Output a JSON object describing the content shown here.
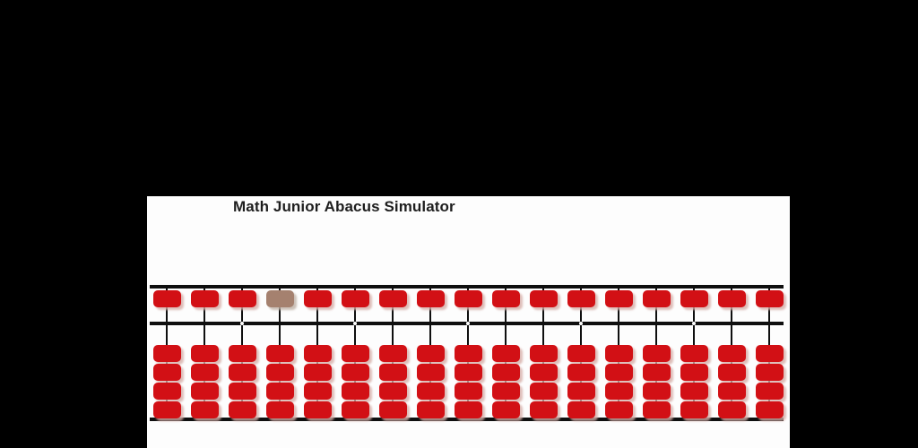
{
  "app": {
    "title": "Math Junior Abacus Simulator",
    "background_color": "#000000",
    "panel_color": "#fdfdfd",
    "title_color": "#1e1e1e"
  },
  "abacus": {
    "rod_count": 17,
    "heaven_beads_per_rod": 1,
    "earth_beads_per_rod": 4,
    "heaven_bead_position": "up",
    "earth_bead_position": "down",
    "displayed_value": "0",
    "unit_dot_rods": [
      3,
      6,
      9,
      12,
      15
    ],
    "highlighted_rod": 4,
    "highlighted_bead_row": "heaven",
    "bead_color": "#d21015",
    "highlighted_bead_color": "#a5816f",
    "frame_color": "#0f0f0f",
    "unit_dot_color": "#ffffff"
  }
}
